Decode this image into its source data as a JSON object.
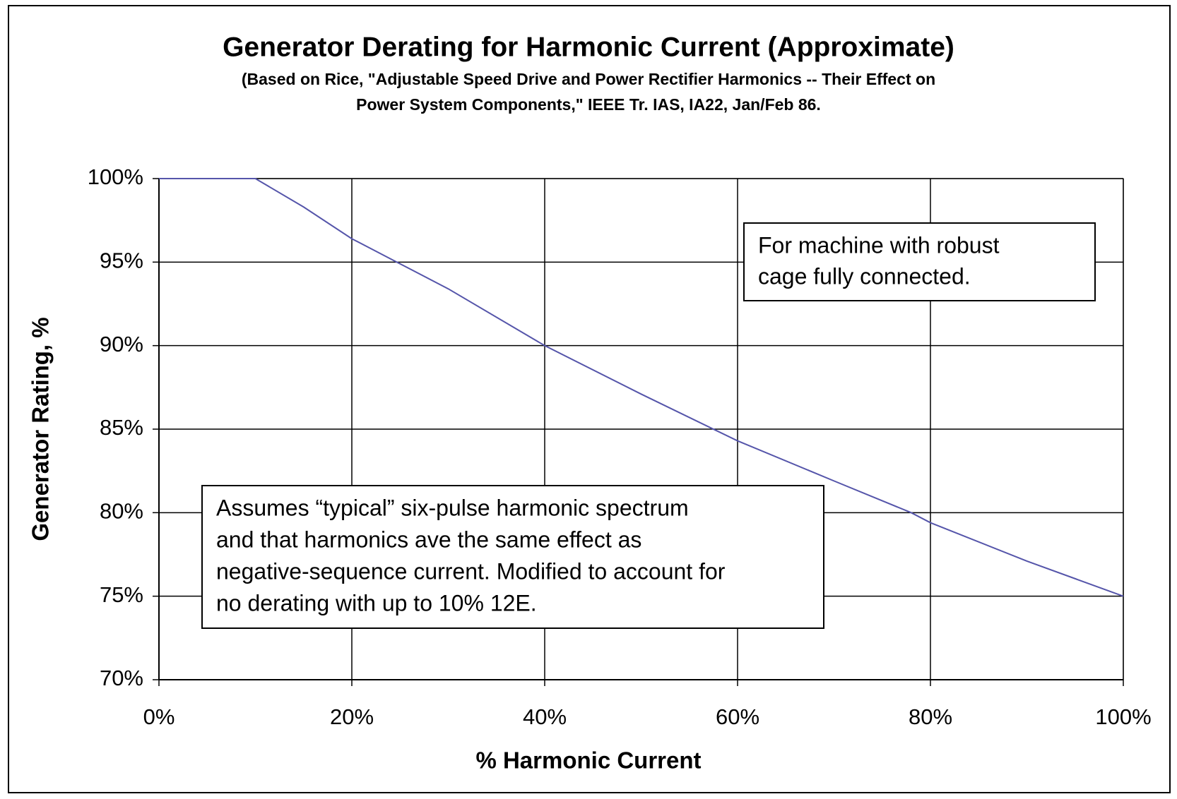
{
  "chart_data": {
    "type": "line",
    "title": "Generator Derating for Harmonic Current (Approximate)",
    "subtitle": [
      "(Based on Rice, \"Adjustable Speed Drive and Power Rectifier Harmonics -- Their Effect on",
      "Power System Components,\" IEEE Tr. IAS, IA22, Jan/Feb 86."
    ],
    "x_label": "% Harmonic Current",
    "y_label": "Generator Rating, %",
    "x": [
      0,
      10,
      15,
      20,
      25,
      30,
      40,
      50,
      60,
      70,
      78,
      80,
      90,
      100
    ],
    "series": [
      {
        "color": "#5555aa",
        "values": [
          100,
          100,
          98.3,
          96.4,
          94.9,
          93.4,
          90,
          87.1,
          84.3,
          81.9,
          80,
          79.4,
          77.1,
          75
        ]
      }
    ],
    "xlim": [
      0,
      100
    ],
    "ylim": [
      70,
      100
    ],
    "xticks": [
      {
        "value": 0,
        "label": "0%"
      },
      {
        "value": 20,
        "label": "20%"
      },
      {
        "value": 40,
        "label": "40%"
      },
      {
        "value": 60,
        "label": "60%"
      },
      {
        "value": 80,
        "label": "80%"
      },
      {
        "value": 100,
        "label": "100%"
      }
    ],
    "yticks": [
      {
        "value": 70,
        "label": "70%"
      },
      {
        "value": 75,
        "label": "75%"
      },
      {
        "value": 80,
        "label": "80%"
      },
      {
        "value": 85,
        "label": "85%"
      },
      {
        "value": 90,
        "label": "90%"
      },
      {
        "value": 95,
        "label": "95%"
      },
      {
        "value": 100,
        "label": "100%"
      }
    ],
    "grid": true,
    "annotations": [
      [
        "For machine with robust",
        "cage fully connected."
      ],
      [
        "Assumes “typical” six-pulse harmonic spectrum",
        "and that harmonics ave the same effect as",
        "negative-sequence current. Modified to account for",
        "no derating with up to 10% 12E."
      ]
    ]
  }
}
